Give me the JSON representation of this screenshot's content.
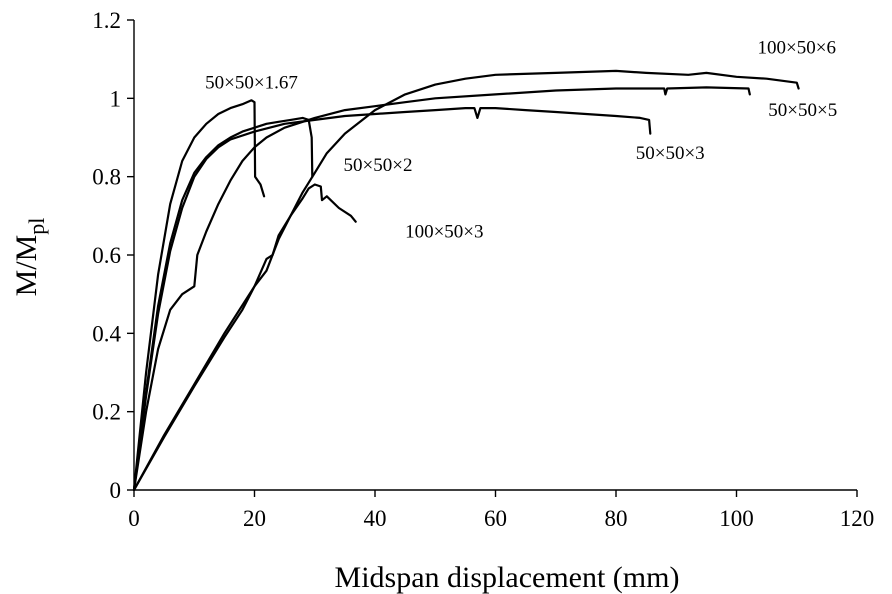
{
  "chart_data": {
    "type": "line",
    "title": "",
    "xlabel": "Midspan displacement (mm)",
    "ylabel": {
      "main": "M/M",
      "sub": "pl"
    },
    "xlim": [
      0,
      120
    ],
    "ylim": [
      0,
      1.2
    ],
    "grid": false,
    "legend": "none",
    "x_ticks": [
      {
        "value": 0,
        "label": "0"
      },
      {
        "value": 20,
        "label": "20"
      },
      {
        "value": 40,
        "label": "40"
      },
      {
        "value": 60,
        "label": "60"
      },
      {
        "value": 80,
        "label": "80"
      },
      {
        "value": 100,
        "label": "100"
      },
      {
        "value": 120,
        "label": "120"
      }
    ],
    "y_ticks": [
      {
        "value": 0,
        "label": "0"
      },
      {
        "value": 0.2,
        "label": "0.2"
      },
      {
        "value": 0.4,
        "label": "0.4"
      },
      {
        "value": 0.6,
        "label": "0.6"
      },
      {
        "value": 0.8,
        "label": "0.8"
      },
      {
        "value": 1.0,
        "label": "1"
      },
      {
        "value": 1.2,
        "label": "1.2"
      }
    ],
    "series": [
      {
        "name": "50×50×1.67",
        "label_anchor": [
          19.5,
          1.025
        ],
        "points": [
          [
            0,
            0
          ],
          [
            2,
            0.3
          ],
          [
            4,
            0.55
          ],
          [
            6,
            0.73
          ],
          [
            8,
            0.84
          ],
          [
            10,
            0.9
          ],
          [
            12,
            0.935
          ],
          [
            14,
            0.96
          ],
          [
            16,
            0.975
          ],
          [
            18,
            0.985
          ],
          [
            19.5,
            0.995
          ],
          [
            20,
            0.99
          ],
          [
            20.1,
            0.8
          ],
          [
            21,
            0.78
          ],
          [
            21.6,
            0.75
          ]
        ]
      },
      {
        "name": "50×50×2",
        "label_anchor": [
          40.5,
          0.815
        ],
        "points": [
          [
            0,
            0
          ],
          [
            2,
            0.25
          ],
          [
            4,
            0.47
          ],
          [
            6,
            0.63
          ],
          [
            8,
            0.74
          ],
          [
            10,
            0.81
          ],
          [
            12,
            0.85
          ],
          [
            14,
            0.88
          ],
          [
            16,
            0.9
          ],
          [
            18,
            0.915
          ],
          [
            20,
            0.925
          ],
          [
            22,
            0.935
          ],
          [
            24,
            0.94
          ],
          [
            26,
            0.945
          ],
          [
            28,
            0.95
          ],
          [
            29,
            0.945
          ],
          [
            29.5,
            0.9
          ],
          [
            29.6,
            0.8
          ]
        ]
      },
      {
        "name": "50×50×3",
        "label_anchor": [
          89,
          0.845
        ],
        "points": [
          [
            0,
            0
          ],
          [
            2,
            0.24
          ],
          [
            4,
            0.45
          ],
          [
            6,
            0.61
          ],
          [
            8,
            0.72
          ],
          [
            10,
            0.8
          ],
          [
            12,
            0.845
          ],
          [
            14,
            0.875
          ],
          [
            16,
            0.895
          ],
          [
            20,
            0.915
          ],
          [
            25,
            0.935
          ],
          [
            30,
            0.945
          ],
          [
            35,
            0.955
          ],
          [
            40,
            0.96
          ],
          [
            45,
            0.965
          ],
          [
            50,
            0.97
          ],
          [
            55,
            0.975
          ],
          [
            56.5,
            0.975
          ],
          [
            57,
            0.95
          ],
          [
            57.5,
            0.975
          ],
          [
            60,
            0.975
          ],
          [
            65,
            0.97
          ],
          [
            70,
            0.965
          ],
          [
            75,
            0.96
          ],
          [
            80,
            0.955
          ],
          [
            84,
            0.95
          ],
          [
            85.5,
            0.945
          ],
          [
            85.7,
            0.91
          ]
        ]
      },
      {
        "name": "50×50×5",
        "label_anchor": [
          111,
          0.955
        ],
        "points": [
          [
            0,
            0
          ],
          [
            2,
            0.2
          ],
          [
            4,
            0.36
          ],
          [
            6,
            0.46
          ],
          [
            8,
            0.5
          ],
          [
            10,
            0.52
          ],
          [
            10.5,
            0.6
          ],
          [
            12,
            0.66
          ],
          [
            14,
            0.73
          ],
          [
            16,
            0.79
          ],
          [
            18,
            0.84
          ],
          [
            20,
            0.875
          ],
          [
            22,
            0.9
          ],
          [
            25,
            0.925
          ],
          [
            30,
            0.95
          ],
          [
            35,
            0.97
          ],
          [
            40,
            0.98
          ],
          [
            45,
            0.99
          ],
          [
            50,
            1.0
          ],
          [
            60,
            1.01
          ],
          [
            70,
            1.02
          ],
          [
            80,
            1.025
          ],
          [
            88,
            1.025
          ],
          [
            88.2,
            1.01
          ],
          [
            88.5,
            1.025
          ],
          [
            95,
            1.028
          ],
          [
            102,
            1.025
          ],
          [
            102.2,
            1.01
          ]
        ]
      },
      {
        "name": "100×50×6",
        "label_anchor": [
          110,
          1.115
        ],
        "points": [
          [
            0,
            0
          ],
          [
            5,
            0.14
          ],
          [
            10,
            0.27
          ],
          [
            15,
            0.4
          ],
          [
            20,
            0.52
          ],
          [
            22,
            0.56
          ],
          [
            24,
            0.64
          ],
          [
            26,
            0.7
          ],
          [
            28,
            0.76
          ],
          [
            30,
            0.81
          ],
          [
            32,
            0.86
          ],
          [
            35,
            0.91
          ],
          [
            40,
            0.97
          ],
          [
            45,
            1.01
          ],
          [
            50,
            1.035
          ],
          [
            55,
            1.05
          ],
          [
            60,
            1.06
          ],
          [
            70,
            1.065
          ],
          [
            80,
            1.07
          ],
          [
            85,
            1.065
          ],
          [
            92,
            1.06
          ],
          [
            95,
            1.065
          ],
          [
            100,
            1.055
          ],
          [
            105,
            1.05
          ],
          [
            110,
            1.04
          ],
          [
            110.3,
            1.025
          ]
        ]
      },
      {
        "name": "100×50×3",
        "label_anchor": [
          51.5,
          0.645
        ],
        "points": [
          [
            0,
            0
          ],
          [
            5,
            0.135
          ],
          [
            10,
            0.265
          ],
          [
            15,
            0.39
          ],
          [
            18,
            0.46
          ],
          [
            20,
            0.52
          ],
          [
            22,
            0.59
          ],
          [
            23,
            0.6
          ],
          [
            24,
            0.65
          ],
          [
            26,
            0.7
          ],
          [
            28,
            0.745
          ],
          [
            29,
            0.77
          ],
          [
            30,
            0.78
          ],
          [
            31,
            0.775
          ],
          [
            31.2,
            0.74
          ],
          [
            32,
            0.75
          ],
          [
            34,
            0.72
          ],
          [
            36,
            0.7
          ],
          [
            36.8,
            0.685
          ]
        ]
      }
    ]
  }
}
